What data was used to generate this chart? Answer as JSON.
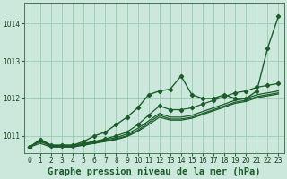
{
  "title": "Graphe pression niveau de la mer (hPa)",
  "background_color": "#cce8dc",
  "plot_bg_color": "#cce8dc",
  "grid_color": "#99ccb3",
  "line_color": "#1a5c2a",
  "xlim": [
    -0.5,
    23.5
  ],
  "ylim": [
    1010.55,
    1014.55
  ],
  "yticks": [
    1011,
    1012,
    1013,
    1014
  ],
  "xticks": [
    0,
    1,
    2,
    3,
    4,
    5,
    6,
    7,
    8,
    9,
    10,
    11,
    12,
    13,
    14,
    15,
    16,
    17,
    18,
    19,
    20,
    21,
    22,
    23
  ],
  "series": [
    {
      "y": [
        1010.7,
        1010.9,
        1010.75,
        1010.75,
        1010.75,
        1010.8,
        1010.85,
        1010.9,
        1010.95,
        1011.05,
        1011.2,
        1011.4,
        1011.6,
        1011.5,
        1011.5,
        1011.55,
        1011.65,
        1011.75,
        1011.85,
        1011.95,
        1012.0,
        1012.1,
        1012.15,
        1012.2
      ],
      "marker": false,
      "lw": 0.9
    },
    {
      "y": [
        1010.7,
        1010.85,
        1010.72,
        1010.72,
        1010.72,
        1010.77,
        1010.82,
        1010.87,
        1010.92,
        1011.0,
        1011.15,
        1011.35,
        1011.55,
        1011.45,
        1011.45,
        1011.5,
        1011.6,
        1011.7,
        1011.8,
        1011.9,
        1011.95,
        1012.05,
        1012.1,
        1012.15
      ],
      "marker": false,
      "lw": 0.9
    },
    {
      "y": [
        1010.7,
        1010.8,
        1010.7,
        1010.7,
        1010.7,
        1010.75,
        1010.8,
        1010.85,
        1010.9,
        1010.98,
        1011.12,
        1011.3,
        1011.5,
        1011.42,
        1011.42,
        1011.47,
        1011.57,
        1011.67,
        1011.77,
        1011.87,
        1011.92,
        1012.02,
        1012.07,
        1012.12
      ],
      "marker": false,
      "lw": 0.9
    },
    {
      "y": [
        1010.7,
        1010.88,
        1010.72,
        1010.72,
        1010.72,
        1010.78,
        1010.85,
        1010.92,
        1011.0,
        1011.1,
        1011.3,
        1011.55,
        1011.8,
        1011.7,
        1011.7,
        1011.75,
        1011.85,
        1011.95,
        1012.05,
        1012.15,
        1012.2,
        1012.3,
        1012.35,
        1012.4
      ],
      "marker": true,
      "lw": 0.9
    },
    {
      "y": [
        1010.7,
        1010.9,
        1010.75,
        1010.75,
        1010.75,
        1010.85,
        1011.0,
        1011.1,
        1011.3,
        1011.5,
        1011.75,
        1012.1,
        1012.2,
        1012.25,
        1012.6,
        1012.1,
        1012.0,
        1012.0,
        1012.1,
        1012.0,
        1012.0,
        1012.2,
        1013.35,
        1014.2
      ],
      "marker": true,
      "lw": 1.0
    }
  ],
  "fontsize_title": 7.5,
  "fontsize_ticks": 5.5
}
